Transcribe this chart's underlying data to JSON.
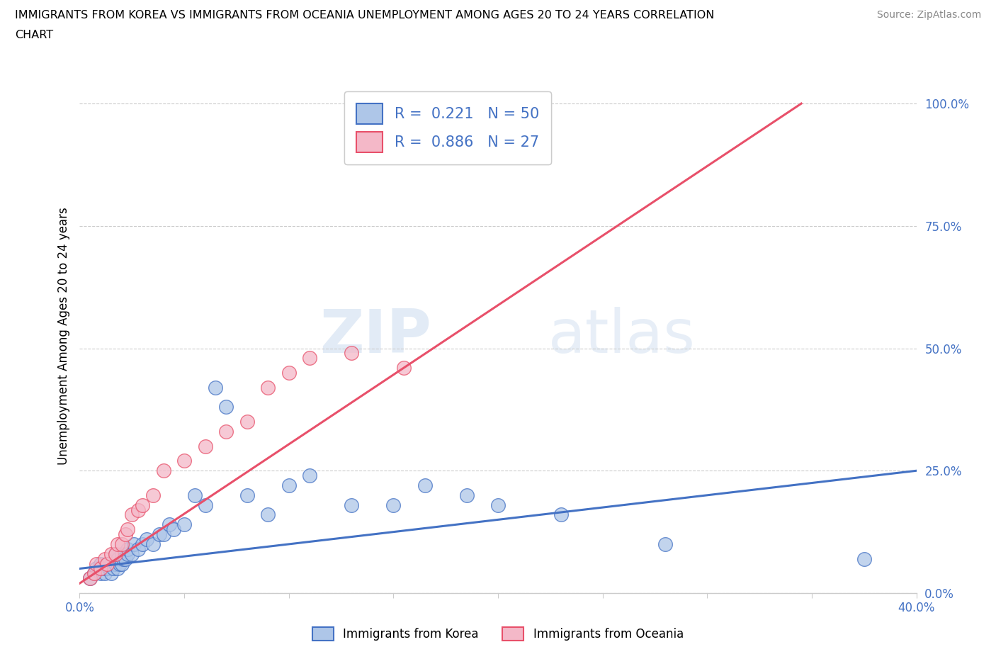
{
  "title": "IMMIGRANTS FROM KOREA VS IMMIGRANTS FROM OCEANIA UNEMPLOYMENT AMONG AGES 20 TO 24 YEARS CORRELATION\nCHART",
  "source": "Source: ZipAtlas.com",
  "ylabel_label": "Unemployment Among Ages 20 to 24 years",
  "xlim": [
    0.0,
    0.4
  ],
  "ylim": [
    0.0,
    1.05
  ],
  "xticks": [
    0.0,
    0.05,
    0.1,
    0.15,
    0.2,
    0.25,
    0.3,
    0.35,
    0.4
  ],
  "yticks": [
    0.0,
    0.25,
    0.5,
    0.75,
    1.0
  ],
  "ytick_labels": [
    "0.0%",
    "25.0%",
    "50.0%",
    "75.0%",
    "100.0%"
  ],
  "xtick_labels": [
    "0.0%",
    "",
    "",
    "",
    "",
    "",
    "",
    "",
    "40.0%"
  ],
  "korea_color": "#aec6e8",
  "oceania_color": "#f4b8c8",
  "korea_line_color": "#4472c4",
  "oceania_line_color": "#e8506a",
  "korea_R": 0.221,
  "korea_N": 50,
  "oceania_R": 0.886,
  "oceania_N": 27,
  "watermark_zip": "ZIP",
  "watermark_atlas": "atlas",
  "korea_scatter_x": [
    0.005,
    0.007,
    0.008,
    0.01,
    0.01,
    0.012,
    0.012,
    0.013,
    0.014,
    0.015,
    0.015,
    0.016,
    0.017,
    0.017,
    0.018,
    0.018,
    0.019,
    0.02,
    0.02,
    0.021,
    0.022,
    0.023,
    0.023,
    0.025,
    0.026,
    0.028,
    0.03,
    0.032,
    0.035,
    0.038,
    0.04,
    0.043,
    0.045,
    0.05,
    0.055,
    0.06,
    0.065,
    0.07,
    0.08,
    0.09,
    0.1,
    0.11,
    0.13,
    0.15,
    0.165,
    0.185,
    0.2,
    0.23,
    0.28,
    0.375
  ],
  "korea_scatter_y": [
    0.03,
    0.04,
    0.05,
    0.04,
    0.06,
    0.04,
    0.05,
    0.06,
    0.05,
    0.04,
    0.06,
    0.05,
    0.06,
    0.08,
    0.05,
    0.07,
    0.06,
    0.06,
    0.08,
    0.07,
    0.07,
    0.08,
    0.09,
    0.08,
    0.1,
    0.09,
    0.1,
    0.11,
    0.1,
    0.12,
    0.12,
    0.14,
    0.13,
    0.14,
    0.2,
    0.18,
    0.42,
    0.38,
    0.2,
    0.16,
    0.22,
    0.24,
    0.18,
    0.18,
    0.22,
    0.2,
    0.18,
    0.16,
    0.1,
    0.07
  ],
  "oceania_scatter_x": [
    0.005,
    0.007,
    0.008,
    0.01,
    0.012,
    0.013,
    0.015,
    0.017,
    0.018,
    0.02,
    0.022,
    0.023,
    0.025,
    0.028,
    0.03,
    0.035,
    0.04,
    0.05,
    0.06,
    0.07,
    0.08,
    0.09,
    0.1,
    0.11,
    0.13,
    0.155,
    0.2
  ],
  "oceania_scatter_y": [
    0.03,
    0.04,
    0.06,
    0.05,
    0.07,
    0.06,
    0.08,
    0.08,
    0.1,
    0.1,
    0.12,
    0.13,
    0.16,
    0.17,
    0.18,
    0.2,
    0.25,
    0.27,
    0.3,
    0.33,
    0.35,
    0.42,
    0.45,
    0.48,
    0.49,
    0.46,
    0.9
  ],
  "korea_trend_x": [
    0.0,
    0.4
  ],
  "korea_trend_y": [
    0.05,
    0.25
  ],
  "oceania_trend_x": [
    0.0,
    0.345
  ],
  "oceania_trend_y": [
    0.02,
    1.0
  ],
  "background_color": "#ffffff",
  "grid_color": "#cccccc",
  "tick_color": "#4472c4",
  "axis_color": "#cccccc"
}
